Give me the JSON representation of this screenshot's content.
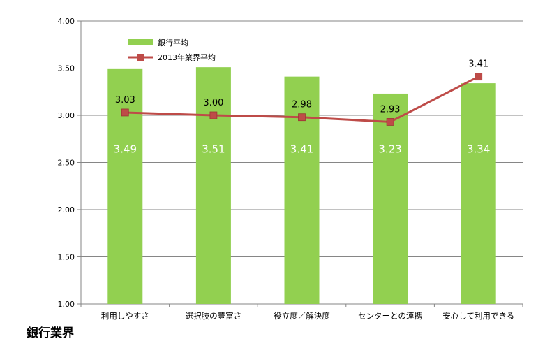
{
  "chart_data": {
    "type": "bar",
    "categories": [
      "利用しやすさ",
      "選択肢の豊富さ",
      "役立度／解決度",
      "センターとの連携",
      "安心して利用できる"
    ],
    "series": [
      {
        "name": "銀行平均",
        "type": "bar",
        "color": "#92d050",
        "values": [
          3.49,
          3.51,
          3.41,
          3.23,
          3.34
        ]
      },
      {
        "name": "2013年業界平均",
        "type": "line",
        "color": "#be4b48",
        "values": [
          3.03,
          3.0,
          2.98,
          2.93,
          3.41
        ]
      }
    ],
    "bar_labels": [
      "3.49",
      "3.51",
      "3.41",
      "3.23",
      "3.34"
    ],
    "line_labels": [
      "3.03",
      "3.00",
      "2.98",
      "2.93",
      "3.41"
    ],
    "yticks": [
      "4.00",
      "3.50",
      "3.00",
      "2.50",
      "2.00",
      "1.50",
      "1.00"
    ],
    "ylim": [
      1.0,
      4.0
    ],
    "grid": true,
    "legend_position": "top-left"
  },
  "footer": {
    "title": "銀行業界"
  }
}
